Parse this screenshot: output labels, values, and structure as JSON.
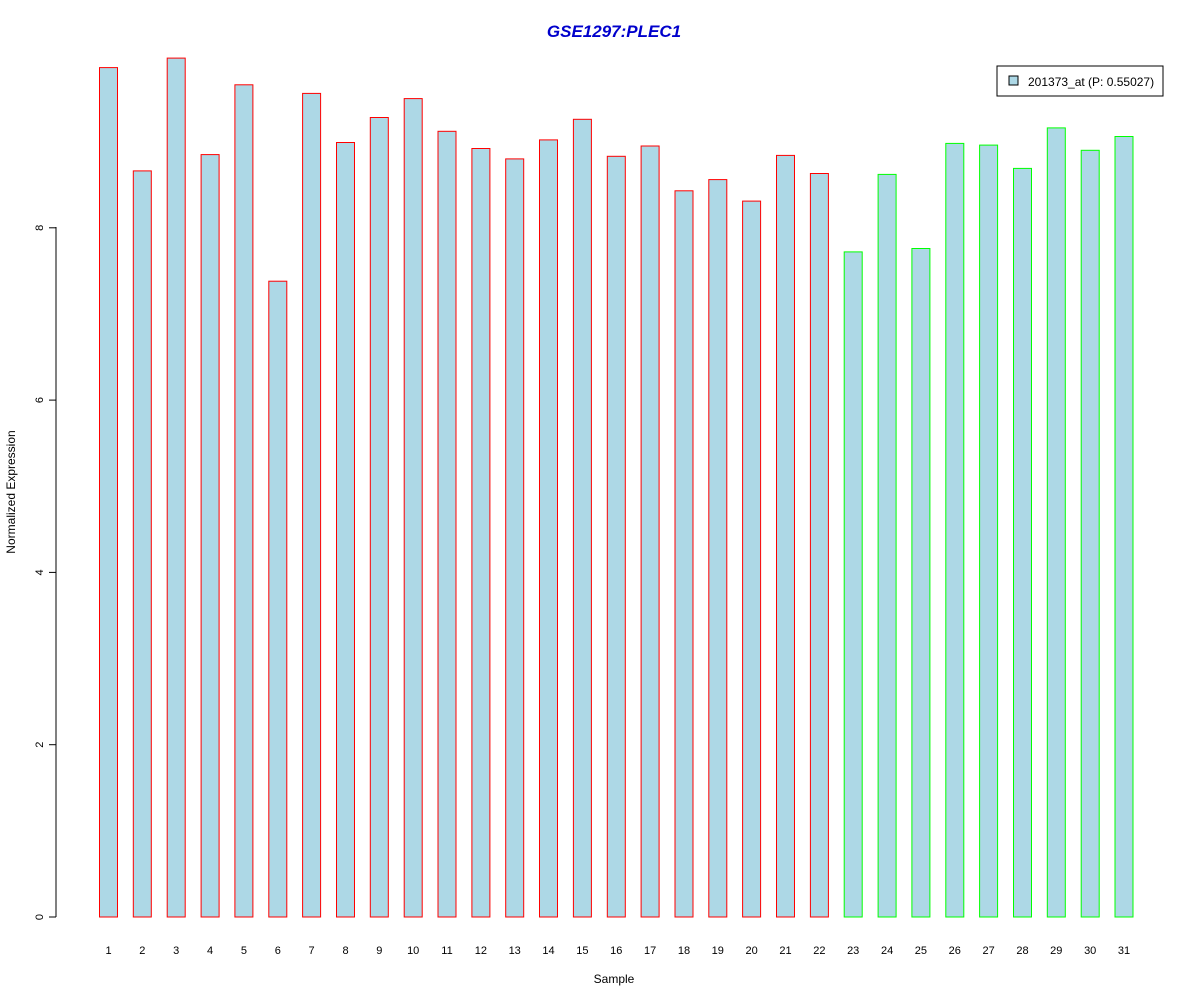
{
  "chart_data": {
    "type": "bar",
    "title": "GSE1297:PLEC1",
    "xlabel": "Sample",
    "ylabel": "Normalized Expression",
    "categories": [
      "1",
      "2",
      "3",
      "4",
      "5",
      "6",
      "7",
      "8",
      "9",
      "10",
      "11",
      "12",
      "13",
      "14",
      "15",
      "16",
      "17",
      "18",
      "19",
      "20",
      "21",
      "22",
      "23",
      "24",
      "25",
      "26",
      "27",
      "28",
      "29",
      "30",
      "31"
    ],
    "series": [
      {
        "name": "201373_at (P: 0.55027)",
        "values": [
          9.86,
          8.66,
          9.97,
          8.85,
          9.66,
          7.38,
          9.56,
          8.99,
          9.28,
          9.5,
          9.12,
          8.92,
          8.8,
          9.02,
          9.26,
          8.83,
          8.95,
          8.43,
          8.56,
          8.31,
          8.84,
          8.63,
          7.72,
          8.62,
          7.76,
          8.98,
          8.96,
          8.69,
          9.16,
          8.9,
          9.06
        ]
      }
    ],
    "bar_fill": "#add8e6",
    "outline_colors": [
      "#ff0000",
      "#ff0000",
      "#ff0000",
      "#ff0000",
      "#ff0000",
      "#ff0000",
      "#ff0000",
      "#ff0000",
      "#ff0000",
      "#ff0000",
      "#ff0000",
      "#ff0000",
      "#ff0000",
      "#ff0000",
      "#ff0000",
      "#ff0000",
      "#ff0000",
      "#ff0000",
      "#ff0000",
      "#ff0000",
      "#ff0000",
      "#ff0000",
      "#00ff00",
      "#00ff00",
      "#00ff00",
      "#00ff00",
      "#00ff00",
      "#00ff00",
      "#00ff00",
      "#00ff00",
      "#00ff00"
    ],
    "title_color": "#0000cc",
    "yticks": [
      "0",
      "2",
      "4",
      "6",
      "8"
    ],
    "ylim": [
      0,
      9.97
    ],
    "legend_position": "top-right",
    "grid": false
  }
}
